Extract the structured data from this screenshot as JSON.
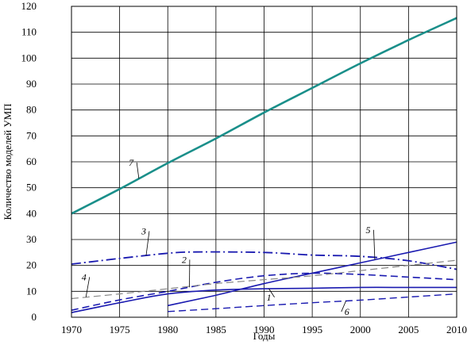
{
  "chart_data": {
    "type": "line",
    "title": "",
    "xlabel": "Годы",
    "ylabel": "Количество моделей УМП",
    "xlim": [
      1970,
      2010
    ],
    "ylim": [
      0,
      120
    ],
    "grid": true,
    "x_ticks": [
      1970,
      1975,
      1980,
      1985,
      1990,
      1995,
      2000,
      2005,
      2010
    ],
    "y_ticks": [
      0,
      10,
      20,
      30,
      40,
      50,
      60,
      70,
      80,
      90,
      100,
      110,
      120
    ],
    "series": [
      {
        "name": "7",
        "style": "solid",
        "color": "#1a8f8a",
        "width": 2.6,
        "x": [
          1970,
          1975,
          1980,
          1985,
          1990,
          1995,
          2000,
          2005,
          2010
        ],
        "y": [
          40,
          49.5,
          59.5,
          69,
          79,
          88.5,
          98,
          107,
          115.5
        ],
        "label_pos": [
          1976.2,
          58.5
        ]
      },
      {
        "name": "3",
        "style": "dashdot",
        "color": "#1a1ab0",
        "width": 1.8,
        "x": [
          1970,
          1975,
          1980,
          1983,
          1990,
          1995,
          2000,
          2005,
          2010
        ],
        "y": [
          20.5,
          22.7,
          24.7,
          25.2,
          25,
          24,
          23.5,
          21.8,
          18.5
        ],
        "label_pos": [
          1977.5,
          32
        ]
      },
      {
        "name": "5",
        "style": "solid",
        "color": "#1a1ab0",
        "width": 1.6,
        "x": [
          1980,
          1985,
          1990,
          1995,
          2000,
          2005,
          2010
        ],
        "y": [
          4.5,
          8.5,
          13,
          17,
          21,
          25,
          29
        ],
        "label_pos": [
          2000.8,
          32.5
        ]
      },
      {
        "name": "2",
        "style": "dashed",
        "color": "#1a1ab0",
        "width": 1.6,
        "x": [
          1970,
          1975,
          1980,
          1985,
          1990,
          1995,
          2000,
          2005,
          2010
        ],
        "y": [
          2.7,
          6.7,
          10,
          13.5,
          16,
          17,
          16.5,
          15.5,
          14.5
        ],
        "label_pos": [
          1981.7,
          21
        ]
      },
      {
        "name": "4",
        "style": "dashed",
        "color": "#888888",
        "width": 1.2,
        "x": [
          1970,
          1975,
          1980,
          1985,
          1990,
          1995,
          2000,
          2005,
          2010
        ],
        "y": [
          7.2,
          9,
          11,
          13,
          14.5,
          16,
          18,
          20,
          22
        ],
        "label_pos": [
          1971.3,
          14.3
        ]
      },
      {
        "name": "1",
        "style": "solid",
        "color": "#1a1ab0",
        "width": 1.6,
        "x": [
          1970,
          1975,
          1980,
          1985,
          1990,
          1995,
          2000,
          2005,
          2010
        ],
        "y": [
          1.8,
          5.6,
          9,
          10.5,
          11,
          11.2,
          11.5,
          11.5,
          11.5
        ],
        "label_pos": [
          1990.5,
          6.5
        ]
      },
      {
        "name": "6",
        "style": "dashed",
        "color": "#1a1ab0",
        "width": 1.4,
        "x": [
          1980,
          1985,
          1990,
          1995,
          2000,
          2005,
          2010
        ],
        "y": [
          2.2,
          3.3,
          4.5,
          5.6,
          6.6,
          7.8,
          9
        ],
        "label_pos": [
          1998.6,
          0.9
        ]
      }
    ]
  }
}
